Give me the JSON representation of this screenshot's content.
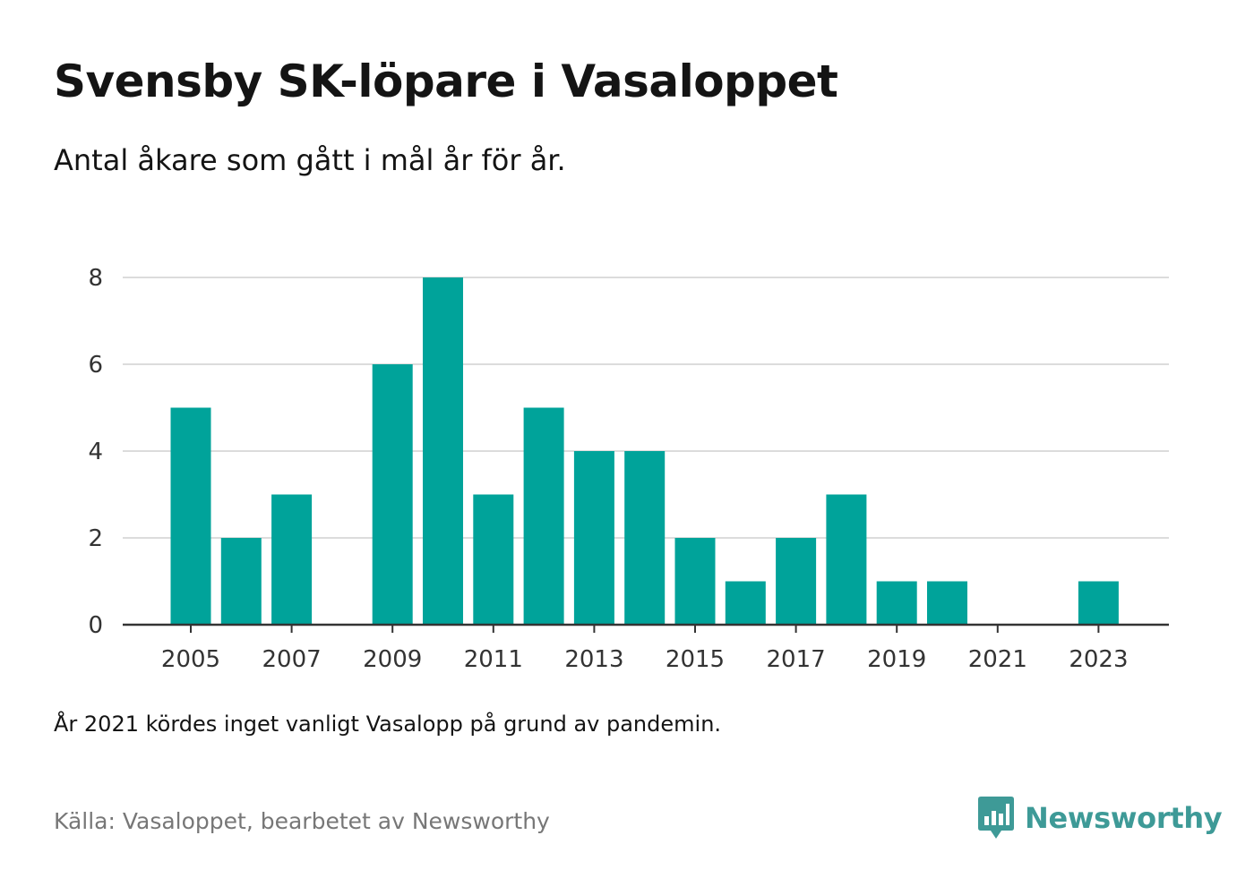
{
  "title": "Svensby SK-löpare i Vasaloppet",
  "subtitle": "Antal åkare som gått i mål år för år.",
  "note": "År 2021 kördes inget vanligt Vasalopp på grund av pandemin.",
  "source": "Källa: Vasaloppet, bearbetet av Newsworthy",
  "brand": {
    "name": "Newsworthy",
    "logo_icon": "newsworthy-chart-bubble-icon",
    "color": "#3e9a97"
  },
  "colors": {
    "bar": "#00a39a",
    "grid": "#dcdcdc",
    "axis": "#333333",
    "tick_label": "#333333"
  },
  "chart_data": {
    "type": "bar",
    "x": [
      2005,
      2006,
      2007,
      2008,
      2009,
      2010,
      2011,
      2012,
      2013,
      2014,
      2015,
      2016,
      2017,
      2018,
      2019,
      2020,
      2021,
      2022,
      2023
    ],
    "values": [
      5,
      2,
      3,
      0,
      6,
      8,
      3,
      5,
      4,
      4,
      2,
      1,
      2,
      3,
      1,
      1,
      0,
      0,
      1
    ],
    "x_tick_labels": [
      "2005",
      "2007",
      "2009",
      "2011",
      "2013",
      "2015",
      "2017",
      "2019",
      "2021",
      "2023"
    ],
    "y_ticks": [
      0,
      2,
      4,
      6,
      8
    ],
    "ylim": [
      0,
      8
    ],
    "grid": true,
    "title": "Svensby SK-löpare i Vasaloppet",
    "xlabel": "",
    "ylabel": ""
  }
}
